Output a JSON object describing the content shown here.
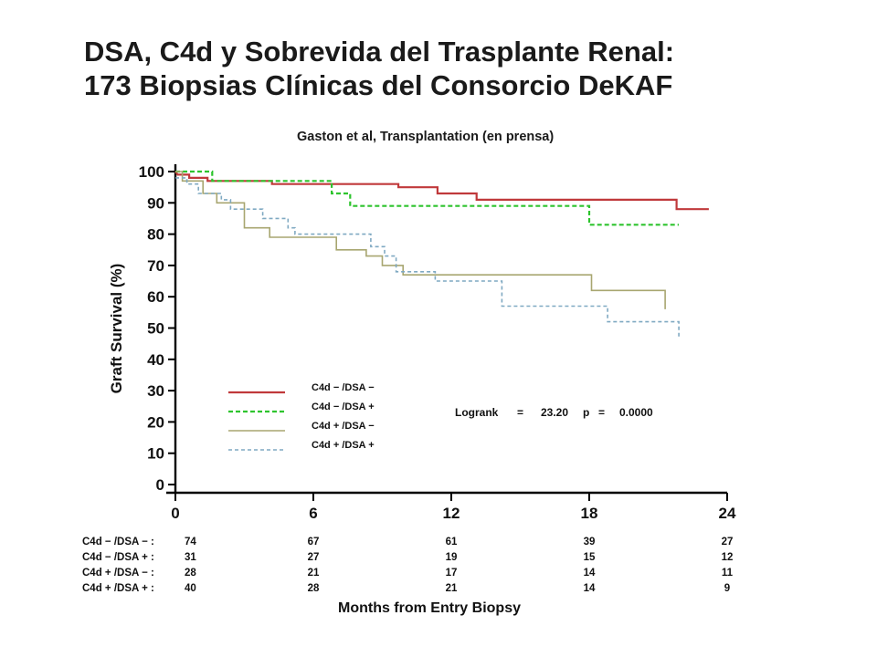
{
  "title_line1": "DSA, C4d y Sobrevida del Trasplante Renal:",
  "title_line2": "173 Biopsias Clínicas del Consorcio DeKAF",
  "subtitle": "Gaston et al, Transplantation (en prensa)",
  "chart_data": {
    "type": "line",
    "step": true,
    "ylabel": "Graft Survival (%)",
    "xlabel": "Months from Entry Biopsy",
    "xlim": [
      0,
      24
    ],
    "ylim": [
      0,
      100
    ],
    "x_ticks": [
      0,
      6,
      12,
      18,
      24
    ],
    "y_ticks": [
      0,
      10,
      20,
      30,
      40,
      50,
      60,
      70,
      80,
      90,
      100
    ],
    "annotation": {
      "logrank_label": "Logrank",
      "logrank_eq": "=",
      "logrank_value": "23.20",
      "p_label": "p",
      "p_eq": "=",
      "p_value": "0.0000"
    },
    "series": [
      {
        "name": "C4d − /DSA −",
        "color": "#c0393b",
        "dash": "solid",
        "width": 2.2,
        "points": [
          [
            0,
            100
          ],
          [
            0.1,
            99
          ],
          [
            0.6,
            99
          ],
          [
            0.6,
            98
          ],
          [
            1.4,
            98
          ],
          [
            1.4,
            97
          ],
          [
            4.2,
            97
          ],
          [
            4.2,
            96
          ],
          [
            9.7,
            96
          ],
          [
            9.7,
            95
          ],
          [
            11.4,
            95
          ],
          [
            11.4,
            93
          ],
          [
            13.1,
            93
          ],
          [
            13.1,
            91
          ],
          [
            21.8,
            91
          ],
          [
            21.8,
            88
          ],
          [
            23.2,
            88
          ]
        ]
      },
      {
        "name": "C4d − /DSA +",
        "color": "#2ec42e",
        "dash": "5,3",
        "width": 2.2,
        "points": [
          [
            0,
            100
          ],
          [
            1.6,
            100
          ],
          [
            1.6,
            97
          ],
          [
            6.8,
            97
          ],
          [
            6.8,
            93
          ],
          [
            7.6,
            93
          ],
          [
            7.6,
            89
          ],
          [
            18.0,
            89
          ],
          [
            18.0,
            83
          ],
          [
            21.9,
            83
          ]
        ]
      },
      {
        "name": "C4d + /DSA −",
        "color": "#a8a670",
        "dash": "solid",
        "width": 1.6,
        "points": [
          [
            0,
            100
          ],
          [
            0.3,
            100
          ],
          [
            0.3,
            97
          ],
          [
            1.2,
            97
          ],
          [
            1.2,
            93
          ],
          [
            1.8,
            93
          ],
          [
            1.8,
            90
          ],
          [
            3.0,
            90
          ],
          [
            3.0,
            82
          ],
          [
            4.1,
            82
          ],
          [
            4.1,
            79
          ],
          [
            7.0,
            79
          ],
          [
            7.0,
            75
          ],
          [
            8.3,
            75
          ],
          [
            8.3,
            73
          ],
          [
            9.0,
            73
          ],
          [
            9.0,
            70
          ],
          [
            9.9,
            70
          ],
          [
            9.9,
            67
          ],
          [
            18.1,
            67
          ],
          [
            18.1,
            62
          ],
          [
            21.3,
            62
          ],
          [
            21.3,
            56
          ]
        ]
      },
      {
        "name": "C4d + /DSA +",
        "color": "#7fa9c2",
        "dash": "4,3",
        "width": 1.6,
        "points": [
          [
            0,
            98
          ],
          [
            0.5,
            98
          ],
          [
            0.5,
            96
          ],
          [
            1.0,
            96
          ],
          [
            1.0,
            93
          ],
          [
            2.0,
            93
          ],
          [
            2.0,
            91
          ],
          [
            2.4,
            91
          ],
          [
            2.4,
            88
          ],
          [
            3.8,
            88
          ],
          [
            3.8,
            85
          ],
          [
            4.9,
            85
          ],
          [
            4.9,
            82
          ],
          [
            5.2,
            82
          ],
          [
            5.2,
            80
          ],
          [
            8.5,
            80
          ],
          [
            8.5,
            76
          ],
          [
            9.1,
            76
          ],
          [
            9.1,
            73
          ],
          [
            9.6,
            73
          ],
          [
            9.6,
            68
          ],
          [
            11.3,
            68
          ],
          [
            11.3,
            65
          ],
          [
            14.2,
            65
          ],
          [
            14.2,
            57
          ],
          [
            18.8,
            57
          ],
          [
            18.8,
            52
          ],
          [
            21.9,
            52
          ],
          [
            21.9,
            47
          ]
        ]
      }
    ],
    "risk_table": {
      "times": [
        0,
        6,
        12,
        18,
        24
      ],
      "rows": [
        {
          "label": "C4d − /DSA − :",
          "counts": [
            "74",
            "67",
            "61",
            "39",
            "27"
          ]
        },
        {
          "label": "C4d − /DSA + :",
          "counts": [
            "31",
            "27",
            "19",
            "15",
            "12"
          ]
        },
        {
          "label": "C4d + /DSA − :",
          "counts": [
            "28",
            "21",
            "17",
            "14",
            "11"
          ]
        },
        {
          "label": "C4d + /DSA + :",
          "counts": [
            "40",
            "28",
            "21",
            "14",
            "9"
          ]
        }
      ]
    }
  }
}
